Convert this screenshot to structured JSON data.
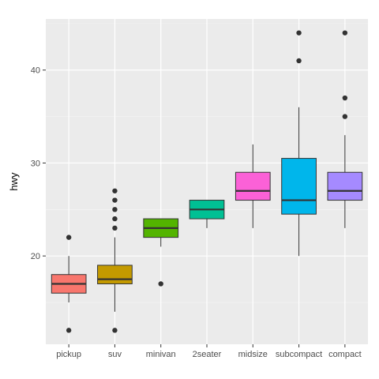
{
  "chart_data": {
    "type": "boxplot",
    "title": "",
    "xlabel": "",
    "ylabel": "hwy",
    "ylim": [
      10.5,
      45.5
    ],
    "yticks": [
      20,
      30,
      40
    ],
    "grid": true,
    "legend": "none",
    "categories": [
      "pickup",
      "suv",
      "minivan",
      "2seater",
      "midsize",
      "subcompact",
      "compact"
    ],
    "series": [
      {
        "category": "pickup",
        "whisker_low": 15,
        "q1": 16,
        "median": 17,
        "q3": 18,
        "whisker_high": 20,
        "outliers": [
          12,
          22
        ],
        "color": "#F8766D"
      },
      {
        "category": "suv",
        "whisker_low": 14,
        "q1": 17,
        "median": 17.5,
        "q3": 19,
        "whisker_high": 22,
        "outliers": [
          12,
          23,
          24,
          25,
          26,
          27
        ],
        "color": "#C49A00"
      },
      {
        "category": "minivan",
        "whisker_low": 21,
        "q1": 22,
        "median": 23,
        "q3": 24,
        "whisker_high": 24,
        "outliers": [
          17
        ],
        "color": "#53B400"
      },
      {
        "category": "2seater",
        "whisker_low": 23,
        "q1": 24,
        "median": 25,
        "q3": 26,
        "whisker_high": 26,
        "outliers": [],
        "color": "#00C094"
      },
      {
        "category": "midsize",
        "whisker_low": 23,
        "q1": 26,
        "median": 27,
        "q3": 29,
        "whisker_high": 32,
        "outliers": [],
        "color": "#FB61D7"
      },
      {
        "category": "subcompact",
        "whisker_low": 20,
        "q1": 24.5,
        "median": 26,
        "q3": 30.5,
        "whisker_high": 36,
        "outliers": [
          41,
          44
        ],
        "color": "#00B6EB"
      },
      {
        "category": "compact",
        "whisker_low": 23,
        "q1": 26,
        "median": 27,
        "q3": 29,
        "whisker_high": 33,
        "outliers": [
          35,
          37,
          44
        ],
        "color": "#A58AFF"
      }
    ],
    "colors": {
      "panel": "#EBEBEB",
      "grid_major": "#FFFFFF",
      "grid_minor": "#F5F5F5",
      "outline": "#333333",
      "text": "#4D4D4D"
    }
  }
}
